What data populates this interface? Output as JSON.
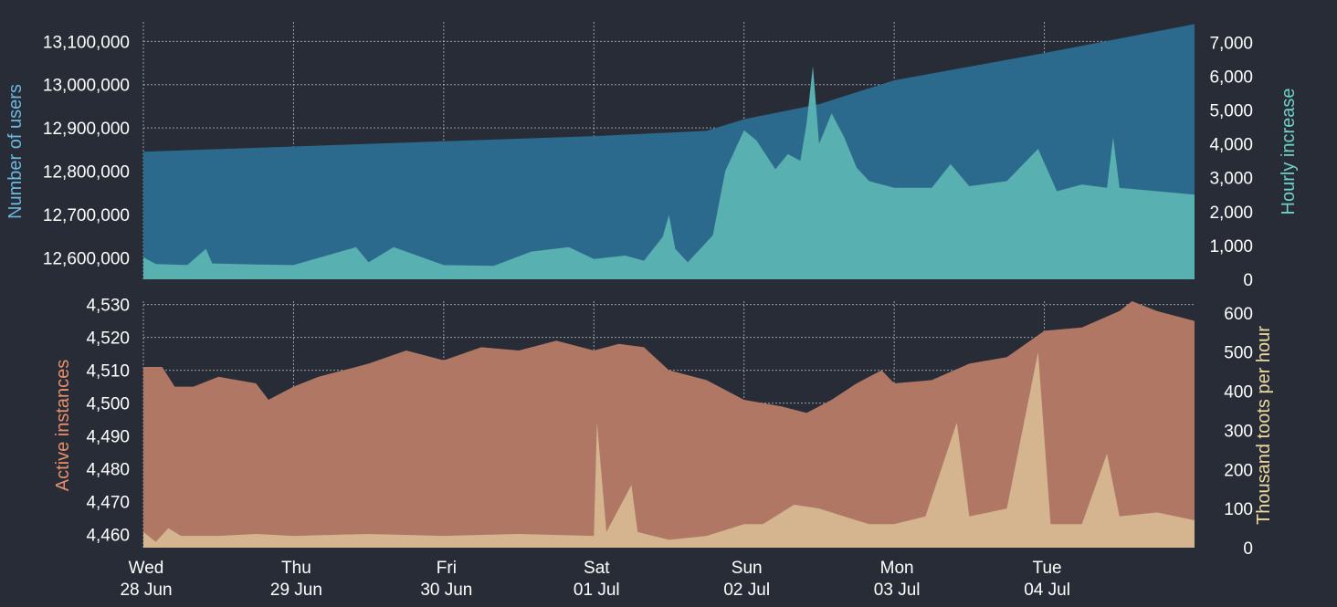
{
  "colors": {
    "background": "#282c37",
    "users_fill": "#2b6a8c",
    "hourly_fill": "#58b0b1",
    "instances_fill": "#b07864",
    "toots_fill": "#d4b58f",
    "users_label": "#6cb7de",
    "hourly_label": "#6fd1c9",
    "instances_label": "#e8906c",
    "toots_label": "#eedba0"
  },
  "chart_data": [
    {
      "type": "area",
      "ylabel": "Number of users",
      "y2label": "Hourly increase",
      "x_range": [
        "2017-06-28T00:00",
        "2017-07-05T00:00"
      ],
      "ylim": [
        12550000,
        13145000
      ],
      "yticks": [
        12600000,
        12700000,
        12800000,
        12900000,
        13000000,
        13100000
      ],
      "ytick_labels": [
        "12,600,000",
        "12,700,000",
        "12,800,000",
        "12,900,000",
        "13,000,000",
        "13,100,000"
      ],
      "y2lim": [
        0,
        7600
      ],
      "y2ticks": [
        0,
        1000,
        2000,
        3000,
        4000,
        5000,
        6000,
        7000
      ],
      "y2tick_labels": [
        "0",
        "1,000",
        "2,000",
        "3,000",
        "4,000",
        "5,000",
        "6,000",
        "7,000"
      ],
      "grid": true,
      "series": [
        {
          "name": "Number of users",
          "axis": "left",
          "points": [
            [
              "2017-06-28T00:00",
              12845000
            ],
            [
              "2017-06-29T00:00",
              12857000
            ],
            [
              "2017-06-30T00:00",
              12869000
            ],
            [
              "2017-07-01T00:00",
              12881000
            ],
            [
              "2017-07-01T18:00",
              12893000
            ],
            [
              "2017-07-02T00:00",
              12920000
            ],
            [
              "2017-07-02T12:00",
              12955000
            ],
            [
              "2017-07-03T00:00",
              13010000
            ],
            [
              "2017-07-04T00:00",
              13073000
            ],
            [
              "2017-07-05T00:00",
              13140000
            ]
          ]
        },
        {
          "name": "Hourly increase",
          "axis": "right",
          "points": [
            [
              "2017-06-28T00:00",
              650
            ],
            [
              "2017-06-28T02:00",
              450
            ],
            [
              "2017-06-28T07:00",
              420
            ],
            [
              "2017-06-28T10:00",
              900
            ],
            [
              "2017-06-28T11:00",
              470
            ],
            [
              "2017-06-28T18:00",
              440
            ],
            [
              "2017-06-29T00:00",
              420
            ],
            [
              "2017-06-29T10:00",
              950
            ],
            [
              "2017-06-29T12:00",
              500
            ],
            [
              "2017-06-29T16:00",
              950
            ],
            [
              "2017-06-30T00:00",
              420
            ],
            [
              "2017-06-30T08:00",
              400
            ],
            [
              "2017-06-30T14:00",
              820
            ],
            [
              "2017-06-30T20:00",
              950
            ],
            [
              "2017-07-01T00:00",
              600
            ],
            [
              "2017-07-01T05:00",
              700
            ],
            [
              "2017-07-01T08:00",
              550
            ],
            [
              "2017-07-01T11:00",
              1250
            ],
            [
              "2017-07-01T12:00",
              1900
            ],
            [
              "2017-07-01T13:00",
              900
            ],
            [
              "2017-07-01T15:00",
              500
            ],
            [
              "2017-07-01T18:00",
              1100
            ],
            [
              "2017-07-01T19:00",
              1300
            ],
            [
              "2017-07-01T21:00",
              3200
            ],
            [
              "2017-07-02T00:00",
              4400
            ],
            [
              "2017-07-02T02:00",
              4100
            ],
            [
              "2017-07-02T05:00",
              3250
            ],
            [
              "2017-07-02T07:00",
              3700
            ],
            [
              "2017-07-02T09:00",
              3500
            ],
            [
              "2017-07-02T10:00",
              4600
            ],
            [
              "2017-07-02T11:00",
              6300
            ],
            [
              "2017-07-02T12:00",
              4000
            ],
            [
              "2017-07-02T14:00",
              4900
            ],
            [
              "2017-07-02T16:00",
              4200
            ],
            [
              "2017-07-02T18:00",
              3300
            ],
            [
              "2017-07-02T20:00",
              2900
            ],
            [
              "2017-07-03T00:00",
              2700
            ],
            [
              "2017-07-03T06:00",
              2700
            ],
            [
              "2017-07-03T09:00",
              3400
            ],
            [
              "2017-07-03T12:00",
              2750
            ],
            [
              "2017-07-03T18:00",
              2900
            ],
            [
              "2017-07-03T23:00",
              3850
            ],
            [
              "2017-07-04T02:00",
              2600
            ],
            [
              "2017-07-04T06:00",
              2800
            ],
            [
              "2017-07-04T10:00",
              2700
            ],
            [
              "2017-07-04T11:00",
              4200
            ],
            [
              "2017-07-04T12:00",
              2700
            ],
            [
              "2017-07-04T18:00",
              2600
            ],
            [
              "2017-07-05T00:00",
              2500
            ]
          ]
        }
      ],
      "x_tick_labels": [
        {
          "day": "Wed",
          "date": "28 Jun"
        },
        {
          "day": "Thu",
          "date": "29 Jun"
        },
        {
          "day": "Fri",
          "date": "30 Jun"
        },
        {
          "day": "Sat",
          "date": "01 Jul"
        },
        {
          "day": "Sun",
          "date": "02 Jul"
        },
        {
          "day": "Mon",
          "date": "03 Jul"
        },
        {
          "day": "Tue",
          "date": "04 Jul"
        }
      ]
    },
    {
      "type": "area",
      "ylabel": "Active instances",
      "y2label": "Thousand toots per hour",
      "x_range": [
        "2017-06-28T00:00",
        "2017-07-05T00:00"
      ],
      "ylim": [
        4456,
        4531
      ],
      "yticks": [
        4460,
        4470,
        4480,
        4490,
        4500,
        4510,
        4520,
        4530
      ],
      "ytick_labels": [
        "4,460",
        "4,470",
        "4,480",
        "4,490",
        "4,500",
        "4,510",
        "4,520",
        "4,530"
      ],
      "y2lim": [
        0,
        630
      ],
      "y2ticks": [
        0,
        100,
        200,
        300,
        400,
        500,
        600
      ],
      "y2tick_labels": [
        "0",
        "100",
        "200",
        "300",
        "400",
        "500",
        "600"
      ],
      "grid": true,
      "series": [
        {
          "name": "Active instances",
          "axis": "left",
          "points": [
            [
              "2017-06-28T00:00",
              4511
            ],
            [
              "2017-06-28T03:00",
              4511
            ],
            [
              "2017-06-28T05:00",
              4505
            ],
            [
              "2017-06-28T08:00",
              4505
            ],
            [
              "2017-06-28T12:00",
              4508
            ],
            [
              "2017-06-28T18:00",
              4506
            ],
            [
              "2017-06-28T20:00",
              4501
            ],
            [
              "2017-06-29T00:00",
              4505
            ],
            [
              "2017-06-29T04:00",
              4508
            ],
            [
              "2017-06-29T08:00",
              4510
            ],
            [
              "2017-06-29T12:00",
              4512
            ],
            [
              "2017-06-29T18:00",
              4516
            ],
            [
              "2017-06-30T00:00",
              4513
            ],
            [
              "2017-06-30T06:00",
              4517
            ],
            [
              "2017-06-30T12:00",
              4516
            ],
            [
              "2017-06-30T18:00",
              4519
            ],
            [
              "2017-07-01T00:00",
              4516
            ],
            [
              "2017-07-01T04:00",
              4518
            ],
            [
              "2017-07-01T08:00",
              4517
            ],
            [
              "2017-07-01T12:00",
              4510
            ],
            [
              "2017-07-01T18:00",
              4507
            ],
            [
              "2017-07-02T00:00",
              4501
            ],
            [
              "2017-07-02T06:00",
              4499
            ],
            [
              "2017-07-02T10:00",
              4497
            ],
            [
              "2017-07-02T14:00",
              4501
            ],
            [
              "2017-07-02T18:00",
              4506
            ],
            [
              "2017-07-02T22:00",
              4510
            ],
            [
              "2017-07-03T00:00",
              4506
            ],
            [
              "2017-07-03T06:00",
              4507
            ],
            [
              "2017-07-03T12:00",
              4512
            ],
            [
              "2017-07-03T18:00",
              4514
            ],
            [
              "2017-07-04T00:00",
              4522
            ],
            [
              "2017-07-04T06:00",
              4523
            ],
            [
              "2017-07-04T12:00",
              4528
            ],
            [
              "2017-07-04T14:00",
              4531
            ],
            [
              "2017-07-04T18:00",
              4528
            ],
            [
              "2017-07-05T00:00",
              4525
            ]
          ]
        },
        {
          "name": "Thousand toots per hour",
          "axis": "right",
          "points": [
            [
              "2017-06-28T00:00",
              40
            ],
            [
              "2017-06-28T02:00",
              15
            ],
            [
              "2017-06-28T04:00",
              50
            ],
            [
              "2017-06-28T06:00",
              30
            ],
            [
              "2017-06-28T12:00",
              30
            ],
            [
              "2017-06-28T18:00",
              35
            ],
            [
              "2017-06-29T00:00",
              30
            ],
            [
              "2017-06-29T12:00",
              35
            ],
            [
              "2017-06-30T00:00",
              30
            ],
            [
              "2017-06-30T12:00",
              35
            ],
            [
              "2017-07-01T00:00",
              30
            ],
            [
              "2017-07-01T00:30",
              320
            ],
            [
              "2017-07-01T02:00",
              40
            ],
            [
              "2017-07-01T06:00",
              160
            ],
            [
              "2017-07-01T07:00",
              40
            ],
            [
              "2017-07-01T12:00",
              20
            ],
            [
              "2017-07-01T18:00",
              30
            ],
            [
              "2017-07-02T00:00",
              60
            ],
            [
              "2017-07-02T03:00",
              60
            ],
            [
              "2017-07-02T08:00",
              110
            ],
            [
              "2017-07-02T12:00",
              100
            ],
            [
              "2017-07-02T16:00",
              80
            ],
            [
              "2017-07-02T20:00",
              60
            ],
            [
              "2017-07-03T00:00",
              60
            ],
            [
              "2017-07-03T05:00",
              80
            ],
            [
              "2017-07-03T10:00",
              320
            ],
            [
              "2017-07-03T12:00",
              80
            ],
            [
              "2017-07-03T18:00",
              100
            ],
            [
              "2017-07-03T23:00",
              500
            ],
            [
              "2017-07-04T01:00",
              60
            ],
            [
              "2017-07-04T06:00",
              60
            ],
            [
              "2017-07-04T10:00",
              240
            ],
            [
              "2017-07-04T12:00",
              80
            ],
            [
              "2017-07-04T18:00",
              90
            ],
            [
              "2017-07-05T00:00",
              70
            ]
          ]
        }
      ],
      "x_tick_labels": [
        {
          "day": "Wed",
          "date": "28 Jun"
        },
        {
          "day": "Thu",
          "date": "29 Jun"
        },
        {
          "day": "Fri",
          "date": "30 Jun"
        },
        {
          "day": "Sat",
          "date": "01 Jul"
        },
        {
          "day": "Sun",
          "date": "02 Jul"
        },
        {
          "day": "Mon",
          "date": "03 Jul"
        },
        {
          "day": "Tue",
          "date": "04 Jul"
        }
      ]
    }
  ]
}
